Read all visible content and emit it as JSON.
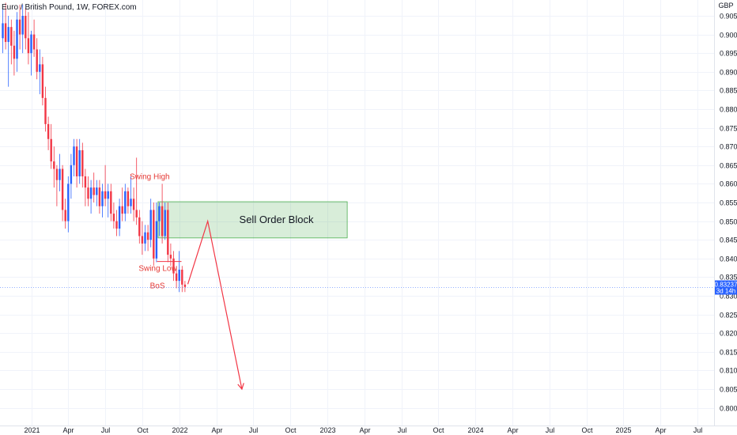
{
  "header": {
    "title": "Euro / British Pound, 1W, FOREX.com"
  },
  "chart_data": {
    "type": "candlestick",
    "title": "Euro / British Pound, 1W, FOREX.com",
    "currency": "GBP",
    "ylim": [
      0.798,
      0.909
    ],
    "price_ticks": [
      "0.90500",
      "0.90000",
      "0.89500",
      "0.89000",
      "0.88500",
      "0.88000",
      "0.87500",
      "0.87000",
      "0.86500",
      "0.86000",
      "0.85500",
      "0.85000",
      "0.84500",
      "0.84000",
      "0.83500",
      "0.83000",
      "0.82500",
      "0.82000",
      "0.81500",
      "0.81000",
      "0.80500",
      "0.80000"
    ],
    "time_ticks": [
      "2021",
      "Apr",
      "Jul",
      "Oct",
      "2022",
      "Apr",
      "Jul",
      "Oct",
      "2023",
      "Apr",
      "Jul",
      "Oct",
      "2024",
      "Apr",
      "Jul",
      "Oct",
      "2025",
      "Apr",
      "Jul"
    ],
    "grid": true,
    "last_price": {
      "price": "0.83237",
      "countdown": "3d 14h",
      "value": 0.83237
    },
    "candles": [
      {
        "o": 0.899,
        "h": 0.907,
        "l": 0.895,
        "c": 0.903
      },
      {
        "o": 0.903,
        "h": 0.9085,
        "l": 0.896,
        "c": 0.898
      },
      {
        "o": 0.898,
        "h": 0.905,
        "l": 0.886,
        "c": 0.902
      },
      {
        "o": 0.902,
        "h": 0.904,
        "l": 0.892,
        "c": 0.897
      },
      {
        "o": 0.897,
        "h": 0.901,
        "l": 0.889,
        "c": 0.8935
      },
      {
        "o": 0.8935,
        "h": 0.906,
        "l": 0.89,
        "c": 0.904
      },
      {
        "o": 0.904,
        "h": 0.908,
        "l": 0.896,
        "c": 0.9
      },
      {
        "o": 0.9,
        "h": 0.908,
        "l": 0.895,
        "c": 0.905
      },
      {
        "o": 0.905,
        "h": 0.907,
        "l": 0.896,
        "c": 0.899
      },
      {
        "o": 0.899,
        "h": 0.906,
        "l": 0.892,
        "c": 0.895
      },
      {
        "o": 0.895,
        "h": 0.901,
        "l": 0.889,
        "c": 0.9
      },
      {
        "o": 0.9,
        "h": 0.904,
        "l": 0.894,
        "c": 0.896
      },
      {
        "o": 0.896,
        "h": 0.899,
        "l": 0.888,
        "c": 0.89
      },
      {
        "o": 0.89,
        "h": 0.896,
        "l": 0.884,
        "c": 0.892
      },
      {
        "o": 0.892,
        "h": 0.894,
        "l": 0.881,
        "c": 0.883
      },
      {
        "o": 0.883,
        "h": 0.886,
        "l": 0.874,
        "c": 0.876
      },
      {
        "o": 0.876,
        "h": 0.878,
        "l": 0.869,
        "c": 0.872
      },
      {
        "o": 0.872,
        "h": 0.876,
        "l": 0.864,
        "c": 0.866
      },
      {
        "o": 0.866,
        "h": 0.87,
        "l": 0.859,
        "c": 0.864
      },
      {
        "o": 0.864,
        "h": 0.865,
        "l": 0.854,
        "c": 0.861
      },
      {
        "o": 0.861,
        "h": 0.868,
        "l": 0.858,
        "c": 0.864
      },
      {
        "o": 0.864,
        "h": 0.865,
        "l": 0.85,
        "c": 0.853
      },
      {
        "o": 0.853,
        "h": 0.856,
        "l": 0.848,
        "c": 0.85
      },
      {
        "o": 0.85,
        "h": 0.862,
        "l": 0.847,
        "c": 0.86
      },
      {
        "o": 0.86,
        "h": 0.868,
        "l": 0.856,
        "c": 0.865
      },
      {
        "o": 0.865,
        "h": 0.872,
        "l": 0.862,
        "c": 0.87
      },
      {
        "o": 0.87,
        "h": 0.872,
        "l": 0.859,
        "c": 0.862
      },
      {
        "o": 0.862,
        "h": 0.872,
        "l": 0.86,
        "c": 0.869
      },
      {
        "o": 0.869,
        "h": 0.871,
        "l": 0.859,
        "c": 0.862
      },
      {
        "o": 0.862,
        "h": 0.864,
        "l": 0.854,
        "c": 0.859
      },
      {
        "o": 0.859,
        "h": 0.862,
        "l": 0.854,
        "c": 0.856
      },
      {
        "o": 0.856,
        "h": 0.861,
        "l": 0.852,
        "c": 0.859
      },
      {
        "o": 0.859,
        "h": 0.863,
        "l": 0.855,
        "c": 0.857
      },
      {
        "o": 0.857,
        "h": 0.861,
        "l": 0.854,
        "c": 0.859
      },
      {
        "o": 0.859,
        "h": 0.861,
        "l": 0.852,
        "c": 0.854
      },
      {
        "o": 0.854,
        "h": 0.86,
        "l": 0.851,
        "c": 0.858
      },
      {
        "o": 0.858,
        "h": 0.865,
        "l": 0.854,
        "c": 0.856
      },
      {
        "o": 0.856,
        "h": 0.86,
        "l": 0.851,
        "c": 0.858
      },
      {
        "o": 0.858,
        "h": 0.86,
        "l": 0.85,
        "c": 0.852
      },
      {
        "o": 0.852,
        "h": 0.855,
        "l": 0.848,
        "c": 0.85
      },
      {
        "o": 0.85,
        "h": 0.853,
        "l": 0.846,
        "c": 0.848
      },
      {
        "o": 0.848,
        "h": 0.856,
        "l": 0.846,
        "c": 0.854
      },
      {
        "o": 0.854,
        "h": 0.859,
        "l": 0.85,
        "c": 0.852
      },
      {
        "o": 0.852,
        "h": 0.86,
        "l": 0.85,
        "c": 0.858
      },
      {
        "o": 0.858,
        "h": 0.859,
        "l": 0.852,
        "c": 0.854
      },
      {
        "o": 0.854,
        "h": 0.862,
        "l": 0.852,
        "c": 0.856
      },
      {
        "o": 0.856,
        "h": 0.859,
        "l": 0.85,
        "c": 0.853
      },
      {
        "o": 0.853,
        "h": 0.867,
        "l": 0.849,
        "c": 0.851
      },
      {
        "o": 0.851,
        "h": 0.853,
        "l": 0.844,
        "c": 0.846
      },
      {
        "o": 0.846,
        "h": 0.85,
        "l": 0.841,
        "c": 0.844
      },
      {
        "o": 0.844,
        "h": 0.849,
        "l": 0.842,
        "c": 0.847
      },
      {
        "o": 0.847,
        "h": 0.849,
        "l": 0.842,
        "c": 0.845
      },
      {
        "o": 0.845,
        "h": 0.856,
        "l": 0.843,
        "c": 0.853
      },
      {
        "o": 0.853,
        "h": 0.855,
        "l": 0.838,
        "c": 0.84
      },
      {
        "o": 0.84,
        "h": 0.855,
        "l": 0.839,
        "c": 0.85
      },
      {
        "o": 0.85,
        "h": 0.855,
        "l": 0.846,
        "c": 0.854
      },
      {
        "o": 0.854,
        "h": 0.86,
        "l": 0.844,
        "c": 0.846
      },
      {
        "o": 0.846,
        "h": 0.855,
        "l": 0.845,
        "c": 0.853
      },
      {
        "o": 0.853,
        "h": 0.855,
        "l": 0.839,
        "c": 0.841
      },
      {
        "o": 0.841,
        "h": 0.844,
        "l": 0.838,
        "c": 0.84
      },
      {
        "o": 0.84,
        "h": 0.842,
        "l": 0.834,
        "c": 0.836
      },
      {
        "o": 0.836,
        "h": 0.838,
        "l": 0.832,
        "c": 0.834
      },
      {
        "o": 0.834,
        "h": 0.842,
        "l": 0.831,
        "c": 0.837
      },
      {
        "o": 0.837,
        "h": 0.838,
        "l": 0.831,
        "c": 0.833
      },
      {
        "o": 0.833,
        "h": 0.834,
        "l": 0.831,
        "c": 0.83237
      }
    ],
    "order_block": {
      "label": "Sell Order Block",
      "top": 0.8552,
      "bottom": 0.8455,
      "start_index": 54,
      "end_week": 121
    },
    "annotations": {
      "swing_high": {
        "label": "Swing High",
        "index": 53,
        "price": 0.86
      },
      "swing_low": {
        "label": "Swing Low",
        "index": 55,
        "price": 0.8392
      },
      "bos": {
        "label": "BoS",
        "index": 56,
        "price": 0.835
      }
    },
    "projection": [
      {
        "week": 65,
        "price": 0.8331
      },
      {
        "week": 72,
        "price": 0.85
      },
      {
        "week": 84,
        "price": 0.805
      }
    ]
  }
}
